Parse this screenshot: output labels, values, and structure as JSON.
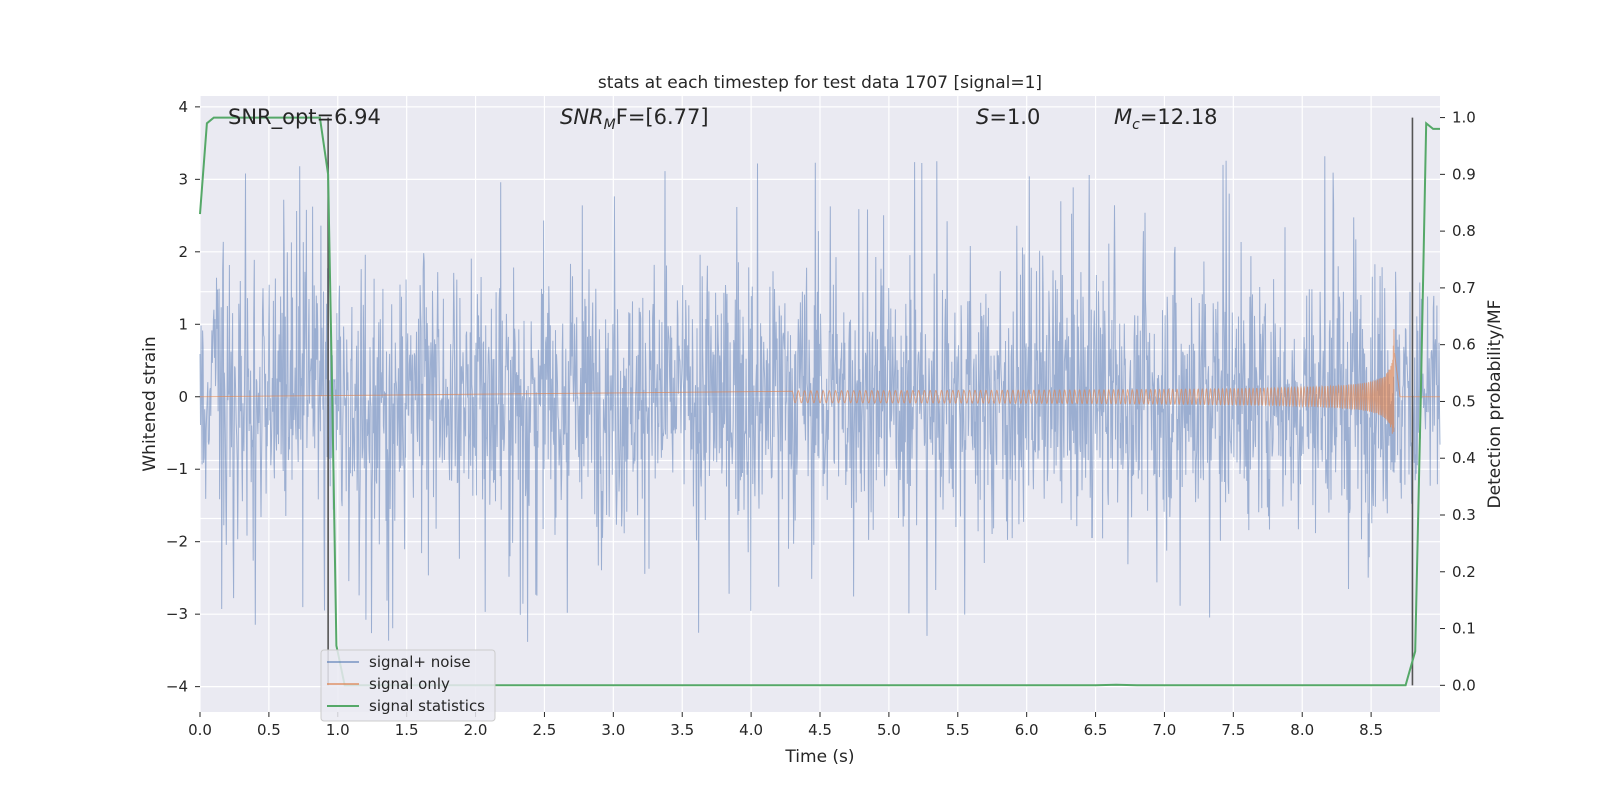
{
  "chart_data": {
    "type": "line",
    "title": "stats at each timestep for test data 1707 [signal=1]",
    "xlabel": "Time (s)",
    "ylabel_left": "Whitened strain",
    "ylabel_right": "Detection probability/MF",
    "xlim": [
      0.0,
      9.0
    ],
    "ylim_left": [
      -4.35,
      4.15
    ],
    "ylim_right": [
      -0.047,
      1.038
    ],
    "x_ticks": [
      "0.0",
      "0.5",
      "1.0",
      "1.5",
      "2.0",
      "2.5",
      "3.0",
      "3.5",
      "4.0",
      "4.5",
      "5.0",
      "5.5",
      "6.0",
      "6.5",
      "7.0",
      "7.5",
      "8.0",
      "8.5"
    ],
    "y_ticks_left": [
      "4",
      "3",
      "2",
      "1",
      "0",
      "−1",
      "−2",
      "−3",
      "−4"
    ],
    "y_ticks_right": [
      "1.0",
      "0.9",
      "0.8",
      "0.7",
      "0.6",
      "0.5",
      "0.4",
      "0.3",
      "0.2",
      "0.1",
      "0.0"
    ],
    "grid": true,
    "legend_position": "lower-left",
    "annotations": {
      "snr_opt": "SNR_opt=6.94",
      "snr_mf_label": "SNR",
      "snr_mf_sub": "M",
      "snr_mf_value": "F=[6.77]",
      "s_label": "S",
      "s_value": "=1.0",
      "mc_label": "M",
      "mc_sub": "c",
      "mc_value": "=12.18"
    },
    "series": [
      {
        "name": "signal+ noise",
        "axis": "left",
        "color": "#4c72b0",
        "description_values": {
          "x_range": [
            0.0,
            9.0
          ],
          "typical_amplitude": 2.2,
          "peak_max": 3.8,
          "peak_min": -4.0
        }
      },
      {
        "name": "signal only",
        "axis": "left",
        "color": "#dd8452",
        "chirp": {
          "start_x": 4.3,
          "end_x": 8.67,
          "start_amp": 0.03,
          "end_amp": 1.25,
          "merger_x": 8.67
        }
      },
      {
        "name": "signal statistics",
        "axis": "right",
        "color": "#55a868",
        "x": [
          0.0,
          0.05,
          0.1,
          0.2,
          0.3,
          0.4,
          0.5,
          0.6,
          0.7,
          0.8,
          0.87,
          0.93,
          0.96,
          0.99,
          1.05,
          1.5,
          2.0,
          3.0,
          4.0,
          5.0,
          6.0,
          6.5,
          6.65,
          6.8,
          7.0,
          8.0,
          8.5,
          8.75,
          8.82,
          8.86,
          8.9,
          8.95,
          9.0
        ],
        "y": [
          0.83,
          0.99,
          1.0,
          1.0,
          1.0,
          1.0,
          1.0,
          1.0,
          1.0,
          1.0,
          1.0,
          0.9,
          0.5,
          0.07,
          0.0,
          0.0,
          0.0,
          0.0,
          0.0,
          0.0,
          0.0,
          0.0,
          0.001,
          0.0,
          0.0,
          0.0,
          0.0,
          0.0,
          0.06,
          0.5,
          0.99,
          0.98,
          0.98
        ]
      }
    ],
    "vertical_markers": [
      {
        "x": 0.93,
        "color": "#555555"
      },
      {
        "x": 8.8,
        "color": "#555555"
      }
    ],
    "horizontal_white_lines_left": [
      1.45,
      0.65,
      -0.12,
      -0.88,
      -1.68
    ]
  }
}
